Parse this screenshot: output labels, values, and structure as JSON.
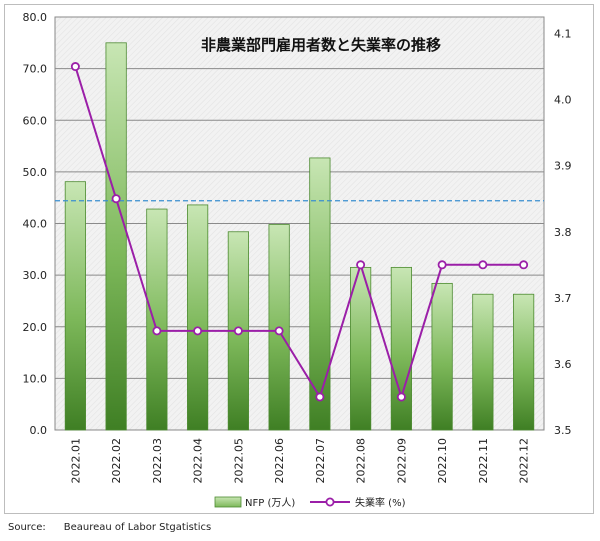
{
  "source": {
    "label": "Source:",
    "text": "Beaureau of Labor Stgatistics"
  },
  "chart_data": {
    "type": "bar",
    "title": "非農業部門雇用者数と失業率の推移",
    "categories": [
      "2022.01",
      "2022.02",
      "2022.03",
      "2022.04",
      "2022.05",
      "2022.06",
      "2022.07",
      "2022.08",
      "2022.09",
      "2022.10",
      "2022.11",
      "2022.12"
    ],
    "series": [
      {
        "name": "NFP (万人)",
        "type": "bar",
        "axis": "left",
        "color": "#5a9e3a",
        "values": [
          48.1,
          75.0,
          42.8,
          43.6,
          38.4,
          39.8,
          52.7,
          31.5,
          31.5,
          28.4,
          26.3,
          26.3
        ]
      },
      {
        "name": "失業率 (%)",
        "type": "line",
        "axis": "right",
        "color": "#9b1fa8",
        "values": [
          4.05,
          3.85,
          3.65,
          3.65,
          3.65,
          3.65,
          3.55,
          3.75,
          3.55,
          3.75,
          3.75,
          3.75
        ]
      }
    ],
    "left_axis": {
      "ylim": [
        0,
        80
      ],
      "ticks": [
        "0.0",
        "10.0",
        "20.0",
        "30.0",
        "40.0",
        "50.0",
        "60.0",
        "70.0",
        "80.0"
      ]
    },
    "right_axis": {
      "ylim": [
        3.5,
        4.125
      ],
      "ticks": [
        "3.5",
        "3.6",
        "3.7",
        "3.8",
        "3.9",
        "4.0",
        "4.1"
      ]
    },
    "reference_line": {
      "value": 44.4,
      "axis": "left",
      "style": "dashed",
      "color": "#3a8fd0"
    },
    "grid": true,
    "legend_position": "bottom-center"
  }
}
